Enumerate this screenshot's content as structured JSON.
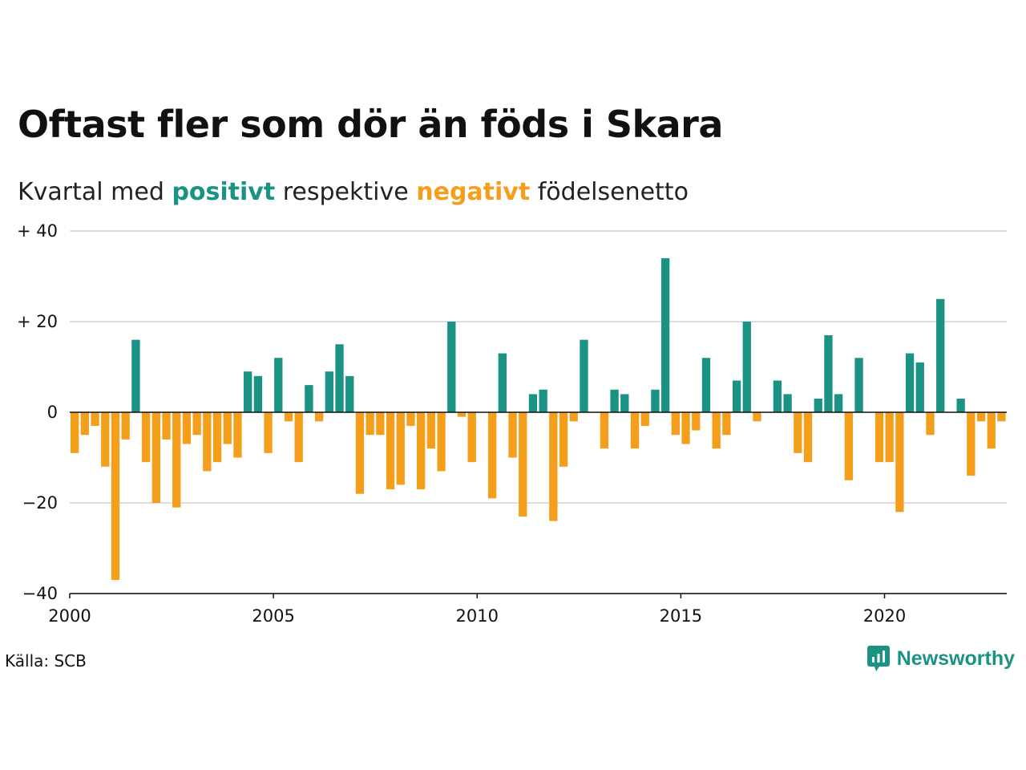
{
  "title": "Oftast fler som dör än föds i Skara",
  "subtitle": {
    "prefix": "Kvartal med",
    "positive": "positivt",
    "middle": "respektive",
    "negative": "negativt",
    "suffix": "födelsenetto"
  },
  "source": "Källa: SCB",
  "brand": {
    "name": "Newsworthy",
    "icon": "newsworthy-logo-icon"
  },
  "colors": {
    "positive": "#1a9384",
    "negative": "#f59e1c",
    "grid": "#dddddd",
    "axis": "#111111"
  },
  "chart_data": {
    "type": "bar",
    "x_start": 2000,
    "x_end": 2023,
    "x_ticks": [
      "2000",
      "2005",
      "2010",
      "2015",
      "2020"
    ],
    "y_ticks": [
      {
        "value": 40,
        "label": "+ 40"
      },
      {
        "value": 20,
        "label": "+ 20"
      },
      {
        "value": 0,
        "label": "0"
      },
      {
        "value": -20,
        "label": "−20"
      },
      {
        "value": -40,
        "label": "−40"
      }
    ],
    "ylim": [
      -40,
      40
    ],
    "grid": true,
    "values": [
      -9,
      -5,
      -3,
      -12,
      -37,
      -6,
      16,
      -11,
      -20,
      -6,
      -21,
      -7,
      -5,
      -13,
      -11,
      -7,
      -10,
      9,
      8,
      -9,
      12,
      -2,
      -11,
      6,
      -2,
      9,
      15,
      8,
      -18,
      -5,
      -5,
      -17,
      -16,
      -3,
      -17,
      -8,
      -13,
      20,
      -1,
      -11,
      0,
      -19,
      13,
      -10,
      -23,
      4,
      5,
      -24,
      -12,
      -2,
      16,
      0,
      -8,
      5,
      4,
      -8,
      -3,
      5,
      34,
      -5,
      -7,
      -4,
      12,
      -8,
      -5,
      7,
      20,
      -2,
      0,
      7,
      4,
      -9,
      -11,
      3,
      17,
      4,
      -15,
      12,
      0,
      -11,
      -11,
      -22,
      13,
      11,
      -5,
      25,
      0,
      3,
      -14,
      -2,
      -8,
      -2
    ]
  }
}
